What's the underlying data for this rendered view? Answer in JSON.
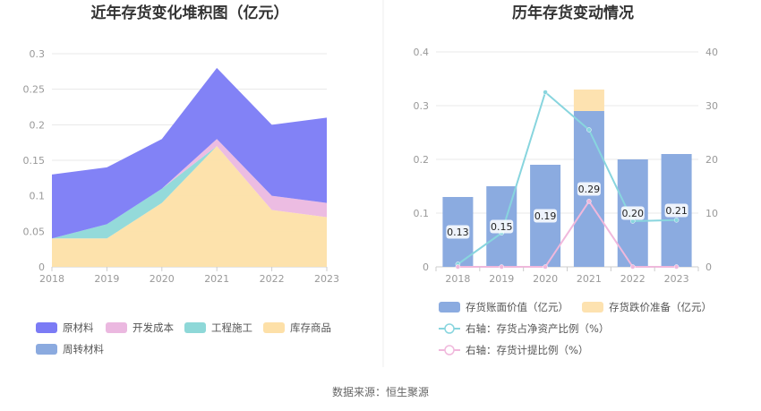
{
  "source_label": "数据来源：恒生聚源",
  "colors": {
    "raw_material": "#7b7bf5",
    "development_cost": "#ebb8e0",
    "engineering": "#8ed8d8",
    "finished_goods": "#fde0a8",
    "turnover_material": "#8baadf",
    "book_value": "#8babe0",
    "impairment": "#fde2b0",
    "ratio_net_assets": "#88d5de",
    "provision_ratio": "#f0b8dc"
  },
  "chart_data": [
    {
      "type": "area",
      "title": "近年存货变化堆积图（亿元）",
      "x": [
        "2018",
        "2019",
        "2020",
        "2021",
        "2022",
        "2023"
      ],
      "ylim": [
        0,
        0.3
      ],
      "yticks": [
        "0",
        "0.05",
        "0.1",
        "0.15",
        "0.2",
        "0.25",
        "0.3"
      ],
      "series": [
        {
          "name": "库存商品",
          "values": [
            0.04,
            0.04,
            0.09,
            0.17,
            0.08,
            0.07
          ]
        },
        {
          "name": "工程施工",
          "values": [
            0.0,
            0.02,
            0.02,
            0.0,
            0.0,
            0.0
          ]
        },
        {
          "name": "开发成本",
          "values": [
            0.0,
            0.0,
            0.0,
            0.01,
            0.02,
            0.02
          ]
        },
        {
          "name": "原材料",
          "values": [
            0.09,
            0.08,
            0.07,
            0.1,
            0.1,
            0.12
          ]
        },
        {
          "name": "周转材料",
          "values": [
            0,
            0,
            0,
            0,
            0,
            0
          ]
        }
      ],
      "legend": [
        "原材料",
        "开发成本",
        "工程施工",
        "库存商品",
        "周转材料"
      ]
    },
    {
      "type": "bar",
      "title": "历年存货变动情况",
      "categories": [
        "2018",
        "2019",
        "2020",
        "2021",
        "2022",
        "2023"
      ],
      "ylim_left": [
        0,
        0.4
      ],
      "yticks_left": [
        "0",
        "0.1",
        "0.2",
        "0.3",
        "0.4"
      ],
      "ylim_right": [
        0,
        40
      ],
      "yticks_right": [
        "0",
        "10",
        "20",
        "30",
        "40"
      ],
      "bars": [
        {
          "name": "存货账面价值（亿元）",
          "values": [
            0.13,
            0.15,
            0.19,
            0.29,
            0.2,
            0.21
          ],
          "labels": [
            "0.13",
            "0.15",
            "0.19",
            "0.29",
            "0.20",
            "0.21"
          ]
        },
        {
          "name": "存货跌价准备（亿元）",
          "values": [
            0,
            0,
            0,
            0.04,
            0,
            0
          ]
        }
      ],
      "lines": [
        {
          "name": "右轴：存货占净资产比例（%）",
          "values": [
            0.5,
            6.3,
            32.5,
            25.5,
            8.5,
            8.7
          ]
        },
        {
          "name": "右轴：存货计提比例（%）",
          "values": [
            0,
            0,
            0,
            12.2,
            0,
            0
          ]
        }
      ],
      "legend_placement": "bottom"
    }
  ]
}
